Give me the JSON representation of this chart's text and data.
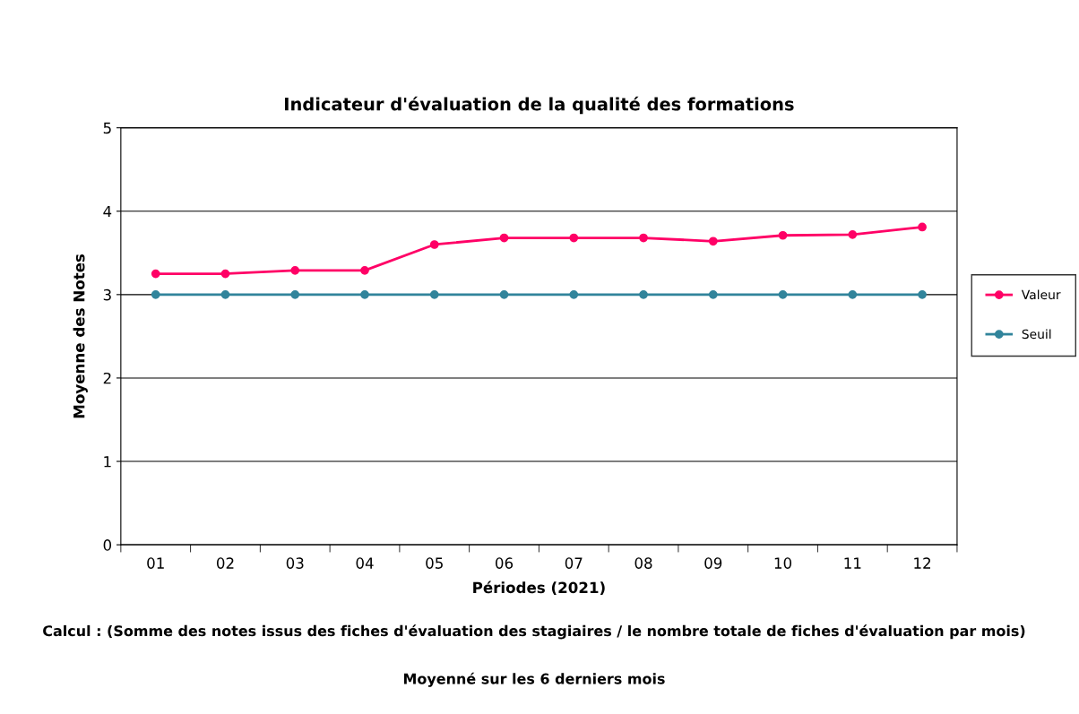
{
  "chart_data": {
    "type": "line",
    "title": "Indicateur d'évaluation de la qualité des formations",
    "xlabel": "Périodes (2021)",
    "ylabel": "Moyenne des Notes",
    "categories": [
      "01",
      "02",
      "03",
      "04",
      "05",
      "06",
      "07",
      "08",
      "09",
      "10",
      "11",
      "12"
    ],
    "series": [
      {
        "name": "Valeur",
        "color": "#ff0066",
        "values": [
          3.25,
          3.25,
          3.29,
          3.29,
          3.6,
          3.68,
          3.68,
          3.68,
          3.64,
          3.71,
          3.72,
          3.81
        ]
      },
      {
        "name": "Seuil",
        "color": "#31849b",
        "values": [
          3,
          3,
          3,
          3,
          3,
          3,
          3,
          3,
          3,
          3,
          3,
          3
        ]
      }
    ],
    "ylim": [
      0,
      5
    ],
    "yticks": [
      0,
      1,
      2,
      3,
      4,
      5
    ],
    "grid": "y",
    "legend": "right",
    "marker": "circle",
    "line_style": "solid",
    "annotations": [
      "Calcul : (Somme des notes issus des fiches d'évaluation des stagiaires / le nombre totale de fiches d'évaluation par mois)",
      "Moyenné sur les 6 derniers mois"
    ]
  }
}
